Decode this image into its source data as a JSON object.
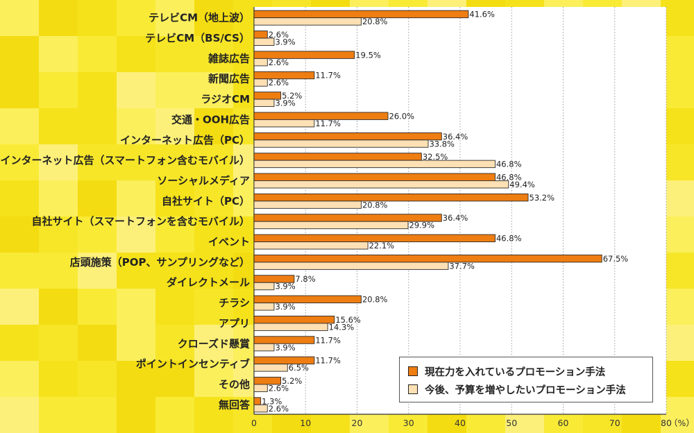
{
  "chart_data": {
    "type": "bar",
    "orientation": "horizontal",
    "categories": [
      "テレビCM（地上波）",
      "テレビCM（BS/CS）",
      "雑誌広告",
      "新聞広告",
      "ラジオCM",
      "交通・OOH広告",
      "インターネット広告（PC）",
      "インターネット広告（スマートフォン含むモバイル）",
      "ソーシャルメディア",
      "自社サイト（PC）",
      "自社サイト（スマートフォンを含むモバイル）",
      "イベント",
      "店頭施策（POP、サンプリングなど）",
      "ダイレクトメール",
      "チラシ",
      "アプリ",
      "クローズド懸賞",
      "ポイントインセンティブ",
      "その他",
      "無回答"
    ],
    "series": [
      {
        "name": "現在力を入れているプロモーション手法",
        "color": "#ee7d12",
        "values": [
          41.6,
          2.6,
          19.5,
          11.7,
          5.2,
          26.0,
          36.4,
          32.5,
          46.8,
          53.2,
          36.4,
          46.8,
          67.5,
          7.8,
          20.8,
          15.6,
          11.7,
          11.7,
          5.2,
          1.3
        ]
      },
      {
        "name": "今後、予算を増やしたいプロモーション手法",
        "color": "#fde0b4",
        "values": [
          20.8,
          3.9,
          2.6,
          2.6,
          3.9,
          11.7,
          33.8,
          46.8,
          49.4,
          20.8,
          29.9,
          22.1,
          37.7,
          3.9,
          3.9,
          14.3,
          3.9,
          6.5,
          2.6,
          2.6
        ]
      }
    ],
    "x_ticks": [
      "0",
      "10",
      "20",
      "30",
      "40",
      "50",
      "60",
      "70",
      "80"
    ],
    "xlim": [
      0,
      80
    ],
    "unit_label": "（%）",
    "grid": "vertical-dotted",
    "legend_position": "bottom-right"
  }
}
